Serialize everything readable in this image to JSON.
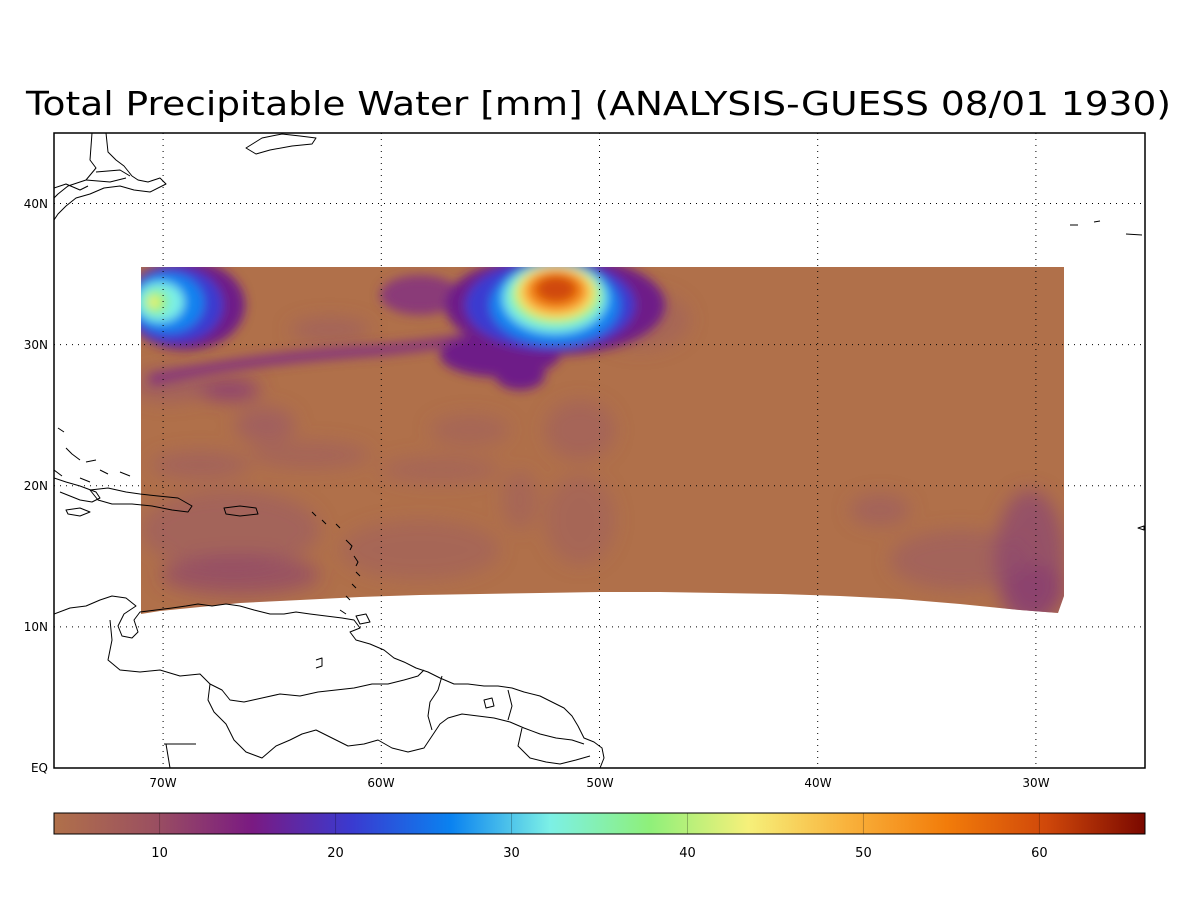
{
  "map": {
    "title": "Total Precipitable Water [mm] (ANALYSIS-GUESS   08/01 1930)",
    "lat_labels": [
      "EQ",
      "10N",
      "20N",
      "30N",
      "40N"
    ],
    "lon_labels": [
      "70W",
      "60W",
      "50W",
      "40W",
      "30W"
    ],
    "extent": {
      "lon_min": -75,
      "lon_max": -25,
      "lat_min": 0,
      "lat_max": 45
    },
    "field_extent": {
      "lon_min": -71,
      "lon_max": -29,
      "lat_min": 11,
      "lat_max": 35.5
    },
    "field_maximum": {
      "lon": -52.5,
      "lat": 34,
      "value_mm": 57
    },
    "secondary_maximum": {
      "lon": -70,
      "lat": 33,
      "value_mm": 42
    },
    "grid": "dotted"
  },
  "colorbar": {
    "min": 4,
    "max": 66,
    "tick_labels": [
      "10",
      "20",
      "30",
      "40",
      "50",
      "60"
    ],
    "tick_values": [
      10,
      20,
      30,
      40,
      50,
      60
    ],
    "colors": [
      "#b0704a",
      "#9b5060",
      "#7a1a82",
      "#3a3ad0",
      "#0a82f0",
      "#7cf0e6",
      "#8ef07a",
      "#f6f07a",
      "#f9b23c",
      "#f27c0a",
      "#d0480a",
      "#7a0800"
    ]
  }
}
